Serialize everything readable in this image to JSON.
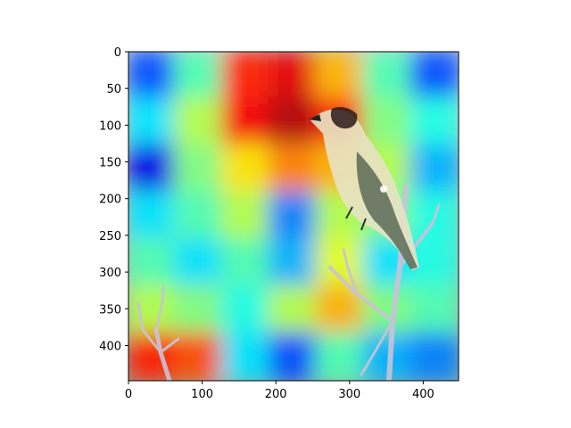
{
  "chart_data": {
    "type": "heatmap",
    "title": "",
    "xlabel": "",
    "ylabel": "",
    "xlim": [
      0,
      448
    ],
    "ylim": [
      448,
      0
    ],
    "x_ticks": [
      "0",
      "100",
      "200",
      "300",
      "400"
    ],
    "y_ticks": [
      "0",
      "50",
      "100",
      "150",
      "200",
      "250",
      "300",
      "350",
      "400"
    ],
    "x_tick_values": [
      0,
      100,
      200,
      300,
      400
    ],
    "y_tick_values": [
      0,
      50,
      100,
      150,
      200,
      250,
      300,
      350,
      400
    ],
    "grid": false,
    "legend": "none",
    "colormap": "jet",
    "overlay_alpha": 0.55,
    "background_image": "bird-on-branch-photo",
    "heatmap_grid_7x7": [
      [
        0.2,
        0.45,
        0.85,
        0.9,
        0.7,
        0.45,
        0.2
      ],
      [
        0.35,
        0.55,
        0.88,
        0.95,
        0.85,
        0.5,
        0.4
      ],
      [
        0.1,
        0.5,
        0.65,
        0.75,
        0.7,
        0.55,
        0.3
      ],
      [
        0.35,
        0.45,
        0.55,
        0.25,
        0.55,
        0.5,
        0.4
      ],
      [
        0.45,
        0.35,
        0.45,
        0.3,
        0.6,
        0.35,
        0.4
      ],
      [
        0.55,
        0.5,
        0.4,
        0.55,
        0.7,
        0.5,
        0.45
      ],
      [
        0.85,
        0.8,
        0.35,
        0.2,
        0.45,
        0.3,
        0.25
      ]
    ]
  },
  "icons": {
    "bird": "bird-icon",
    "branch": "branch-icon"
  }
}
